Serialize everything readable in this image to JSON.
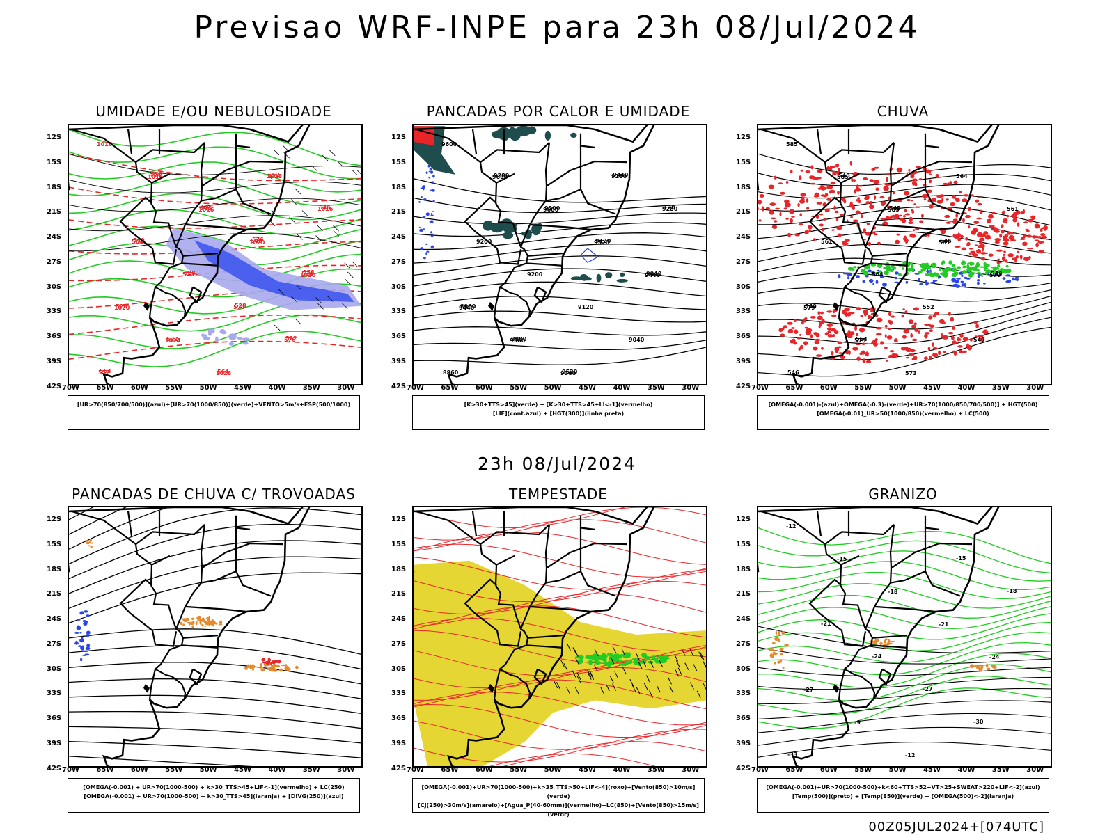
{
  "header": {
    "title": "Previsao WRF-INPE  para 23h 08/Jul/2024",
    "mid_title": "23h 08/Jul/2024"
  },
  "axes": {
    "lat_labels": [
      "12S",
      "15S",
      "18S",
      "21S",
      "24S",
      "27S",
      "30S",
      "33S",
      "36S",
      "39S",
      "42S"
    ],
    "lon_labels": [
      "70W",
      "65W",
      "60W",
      "55W",
      "50W",
      "45W",
      "40W",
      "35W",
      "30W"
    ]
  },
  "panels": [
    {
      "title": "UMIDADE E/OU NEBULOSIDADE",
      "legend": [
        "[UR>70(850/700/500)](azul)+[UR>70(1000/850)](verde)+VENTO>5m/s+ESP(500/1000)"
      ],
      "contours": [
        "1016",
        "1016",
        "1016",
        "1020",
        "1020",
        "1020",
        "1024",
        "1028",
        "1028",
        "1016",
        "564",
        "570",
        "570",
        "576",
        "552",
        "558",
        "546",
        "540",
        "534",
        "528",
        "522",
        "564",
        "552",
        "546",
        "540",
        "528",
        "528",
        "522",
        "564",
        "576",
        "570",
        "576",
        "558"
      ]
    },
    {
      "title": "PANCADAS POR CALOR E UMIDADE",
      "legend": [
        "[K>30+TTS>45](verde) + [K>30+TTS>45+LI<-1](vermelho)",
        "[LIF](cont.azul) + [HGT(300)](linha preta)"
      ],
      "contours": [
        "9600",
        "9600",
        "9600",
        "9520",
        "9440",
        "9440",
        "9360",
        "9360",
        "9280",
        "9280",
        "9200",
        "9200",
        "9120",
        "9040",
        "8960",
        "9280",
        "9200",
        "9120",
        "9040",
        "8960",
        "8880",
        "9520",
        "9440",
        "120"
      ]
    },
    {
      "title": "CHUVA",
      "legend": [
        "[OMEGA(-0.001)-(azul)+OMEGA(-0.3)-(verde)+UR>70(1000/850/700/500)] + HGT(500)",
        "[OMEGA(-0.01)_UR>50(1000/850)(vermelho) + LC(500)"
      ],
      "contours": [
        "585",
        "585",
        "585",
        "581",
        "579",
        "579",
        "575",
        "573",
        "564",
        "561",
        "561",
        "564",
        "552",
        "549",
        "546",
        "540",
        "543",
        "546",
        "549",
        "540",
        "564"
      ]
    },
    {
      "title": "PANCADAS DE CHUVA C/ TROVOADAS",
      "legend": [
        "[OMEGA(-0.001) + UR>70(1000-500) + k>30_TTS>45+LIF<-1](vermelho) + LC(250)",
        "[OMEGA(-0.001) + UR>70(1000-500) + k>30_TTS>45](laranja) + [DIVG(250)](azul)"
      ],
      "contours": []
    },
    {
      "title": "TEMPESTADE",
      "legend": [
        "[OMEGA(-0.001)+UR>70(1000-500)+k>35_TTS>50+LIF<-4](roxo)+[Vento(850)>10m/s](verde)",
        "[CJ(250)>30m/s](amarelo)+[Agua_P(40-60mm)](vermelho)+LC(850)+[Vento(850)>15m/s](vetor)"
      ],
      "contours": []
    },
    {
      "title": "GRANIZO",
      "legend": [
        "[OMEGA(-0.001)+UR>70(1000-500)+k<60+TTS>52+VT>25+SWEAT>220+LIF<-2](azul)",
        "[Temp(500)](preto) + [Temp(850)](verde) + [OMEGA(500)<-2](laranja)"
      ],
      "contours": [
        "-12",
        "-15",
        "-18",
        "-21",
        "-24",
        "-27",
        "-9",
        "-12",
        "-15",
        "-18",
        "-21",
        "-24",
        "-27",
        "-30",
        "-33"
      ]
    }
  ],
  "footer": "00Z05JUL2024+[074UTC]",
  "colors": {
    "red": "#e8262a",
    "green": "#22cc22",
    "blue": "#2a45ee",
    "lavender": "#a8a8ee",
    "darkteal": "#1f4d4d",
    "orange": "#e68a2e",
    "yellow": "#e6d633",
    "black": "#000000"
  }
}
